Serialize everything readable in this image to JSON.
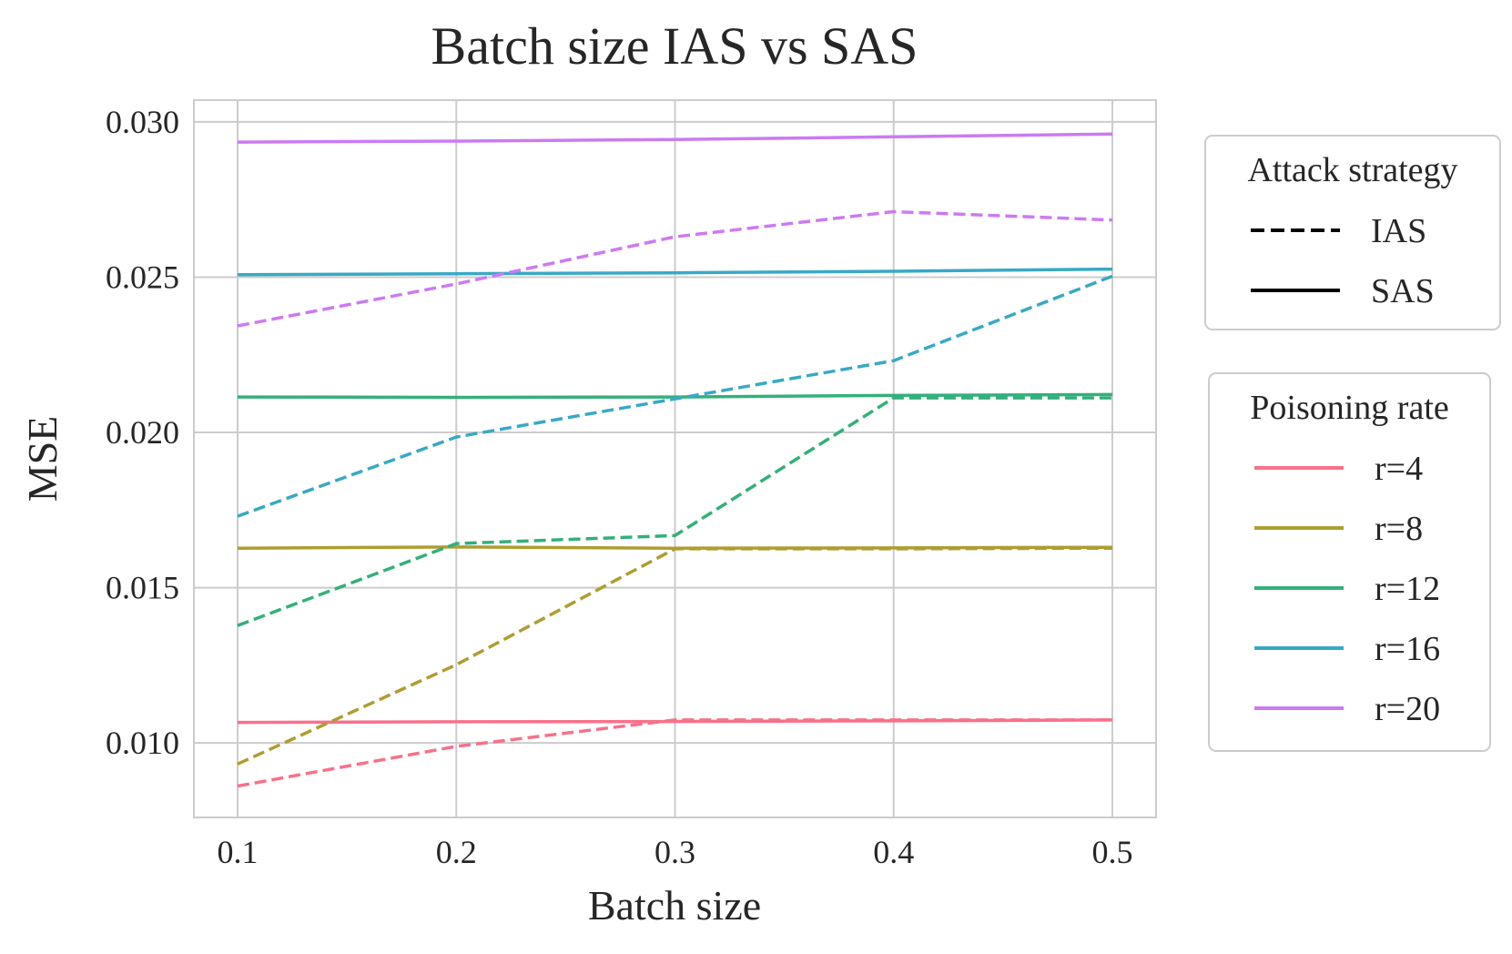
{
  "chart_data": {
    "type": "line",
    "title": "Batch size IAS vs SAS",
    "xlabel": "Batch size",
    "ylabel": "MSE",
    "x": [
      0.1,
      0.2,
      0.3,
      0.4,
      0.5
    ],
    "xticks": [
      "0.1",
      "0.2",
      "0.3",
      "0.4",
      "0.5"
    ],
    "yticks": [
      "0.010",
      "0.015",
      "0.020",
      "0.025",
      "0.030"
    ],
    "xlim": [
      0.08,
      0.52
    ],
    "ylim": [
      0.0076,
      0.0307
    ],
    "grid": true,
    "legends": [
      {
        "title": "Attack strategy",
        "placement": "right",
        "entries": [
          {
            "label": "IAS",
            "style": "dashed"
          },
          {
            "label": "SAS",
            "style": "solid"
          }
        ]
      },
      {
        "title": "Poisoning rate",
        "placement": "right",
        "entries": [
          {
            "label": "r=4",
            "color": "#f7718a"
          },
          {
            "label": "r=8",
            "color": "#ae9d31"
          },
          {
            "label": "r=12",
            "color": "#33b07a"
          },
          {
            "label": "r=16",
            "color": "#38a9c5"
          },
          {
            "label": "r=20",
            "color": "#cc7af4"
          }
        ]
      }
    ],
    "series": [
      {
        "rate": "r=4",
        "strategy": "SAS",
        "color": "#f7718a",
        "style": "solid",
        "values": [
          0.01066,
          0.01068,
          0.01069,
          0.01071,
          0.01074
        ]
      },
      {
        "rate": "r=4",
        "strategy": "IAS",
        "color": "#f7718a",
        "style": "dashed",
        "values": [
          0.00861,
          0.00989,
          0.01074,
          0.01074,
          0.01074
        ]
      },
      {
        "rate": "r=8",
        "strategy": "SAS",
        "color": "#ae9d31",
        "style": "solid",
        "values": [
          0.01627,
          0.01631,
          0.01627,
          0.01628,
          0.0163
        ]
      },
      {
        "rate": "r=8",
        "strategy": "IAS",
        "color": "#ae9d31",
        "style": "dashed",
        "values": [
          0.00932,
          0.01252,
          0.01625,
          0.01625,
          0.01627
        ]
      },
      {
        "rate": "r=12",
        "strategy": "SAS",
        "color": "#33b07a",
        "style": "solid",
        "values": [
          0.02114,
          0.02113,
          0.02114,
          0.02119,
          0.02122
        ]
      },
      {
        "rate": "r=12",
        "strategy": "IAS",
        "color": "#33b07a",
        "style": "dashed",
        "values": [
          0.01378,
          0.01642,
          0.01668,
          0.02111,
          0.02111
        ]
      },
      {
        "rate": "r=16",
        "strategy": "SAS",
        "color": "#38a9c5",
        "style": "solid",
        "values": [
          0.02508,
          0.02511,
          0.02514,
          0.02519,
          0.02526
        ]
      },
      {
        "rate": "r=16",
        "strategy": "IAS",
        "color": "#38a9c5",
        "style": "dashed",
        "values": [
          0.0173,
          0.01985,
          0.02108,
          0.02231,
          0.02503
        ]
      },
      {
        "rate": "r=20",
        "strategy": "SAS",
        "color": "#cc7af4",
        "style": "solid",
        "values": [
          0.02935,
          0.02938,
          0.02943,
          0.02952,
          0.02961
        ]
      },
      {
        "rate": "r=20",
        "strategy": "IAS",
        "color": "#cc7af4",
        "style": "dashed",
        "values": [
          0.02343,
          0.02478,
          0.0263,
          0.02711,
          0.02684
        ]
      }
    ]
  }
}
